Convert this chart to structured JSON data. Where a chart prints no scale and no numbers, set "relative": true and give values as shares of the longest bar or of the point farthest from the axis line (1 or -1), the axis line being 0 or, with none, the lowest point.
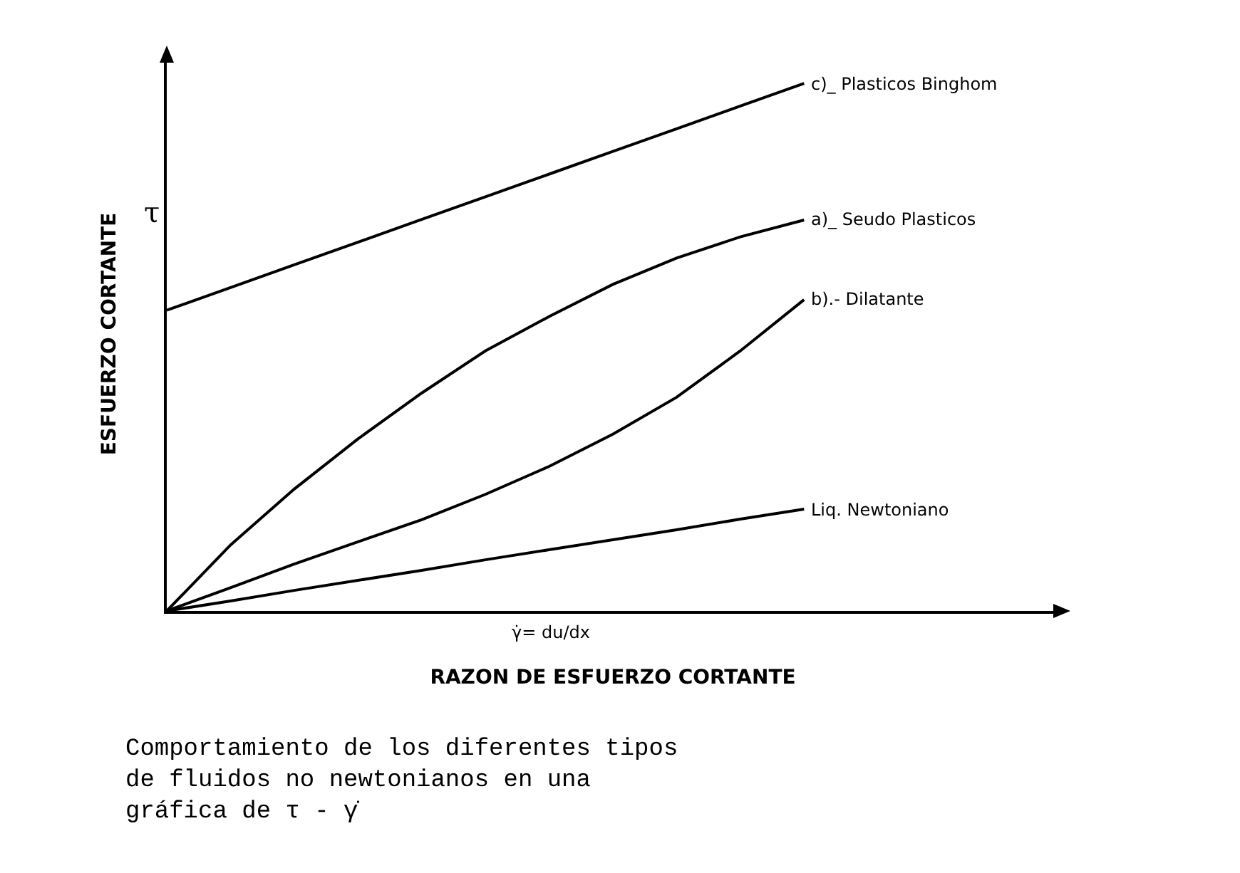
{
  "chart_data": {
    "type": "line",
    "relative": true,
    "tick_labels": false,
    "legend": false,
    "marker": "none",
    "line_style": "solid",
    "xlabel": "RAZON DE ESFUERZO CORTANTE",
    "ylabel": "ESFUERZO CORTANTE",
    "annotations": [
      "τ",
      "γ̇= du/dx",
      "Comportamiento de los diferentes tipos de fluidos no newtonianos en una gráfica de τ - γ̇"
    ],
    "categories": [
      null,
      null,
      null,
      null,
      null,
      null,
      null,
      null,
      null,
      null,
      null,
      null,
      null,
      null,
      null
    ],
    "series": [
      {
        "name": "c)_ Plasticos Binghom",
        "color": "#000000",
        "values": [
          0.57,
          0.613,
          0.656,
          0.699,
          0.742,
          0.785,
          0.828,
          0.871,
          0.914,
          0.957,
          1.0,
          null,
          null,
          null,
          null
        ]
      },
      {
        "name": "a)_ Seudo Plasticos",
        "color": "#000000",
        "values": [
          0,
          0.125,
          0.231,
          0.326,
          0.413,
          0.493,
          0.558,
          0.619,
          0.669,
          0.709,
          0.741,
          null,
          null,
          null,
          null
        ]
      },
      {
        "name": "b).- Dilatante",
        "color": "#000000",
        "values": [
          0,
          0.044,
          0.089,
          0.131,
          0.173,
          0.221,
          0.274,
          0.335,
          0.405,
          0.493,
          0.59,
          null,
          null,
          null,
          null
        ]
      },
      {
        "name": "Liq. Newtoniano",
        "color": "#000000",
        "values": [
          0,
          0.019,
          0.039,
          0.058,
          0.077,
          0.097,
          0.116,
          0.135,
          0.154,
          0.174,
          0.193,
          null,
          null,
          null,
          null
        ]
      }
    ]
  }
}
